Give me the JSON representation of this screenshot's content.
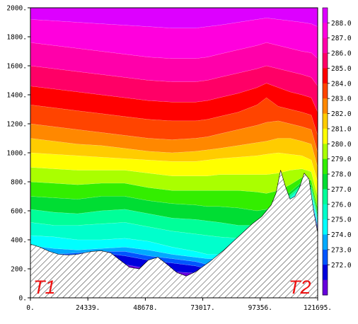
{
  "chart_data": {
    "type": "heatmap",
    "title": "",
    "xlabel": "",
    "ylabel": "",
    "x_ticks": [
      "0.",
      "24339.",
      "48678.",
      "73017.",
      "97356.",
      "121695."
    ],
    "x_tick_values": [
      0,
      24339,
      48678,
      73017,
      97356,
      121695
    ],
    "y_ticks": [
      "0.",
      "200.",
      "400.",
      "600.",
      "800.",
      "1000.",
      "1200.",
      "1400.",
      "1600.",
      "1800.",
      "2000."
    ],
    "y_tick_values": [
      0,
      200,
      400,
      600,
      800,
      1000,
      1200,
      1400,
      1600,
      1800,
      2000
    ],
    "xlim": [
      0,
      121695
    ],
    "ylim": [
      0,
      2000
    ],
    "colorbar": {
      "labels": [
        "288.0",
        "287.0",
        "286.0",
        "285.0",
        "284.0",
        "283.0",
        "282.0",
        "281.0",
        "280.0",
        "279.0",
        "278.0",
        "277.0",
        "276.0",
        "275.0",
        "274.0",
        "273.0",
        "272.0"
      ],
      "colors": [
        "#dd00ff",
        "#ff00dd",
        "#ff00aa",
        "#ff0066",
        "#ff0000",
        "#ff4400",
        "#ff8800",
        "#ffcc00",
        "#ffff00",
        "#aaff00",
        "#33ee00",
        "#00dd33",
        "#00ff99",
        "#00ffcc",
        "#00ffff",
        "#00aaff",
        "#0055ff",
        "#0000dd",
        "#6600dd"
      ]
    },
    "levels": [
      271,
      272,
      273,
      274,
      275,
      276,
      277,
      278,
      279,
      280,
      281,
      282,
      283,
      284,
      285,
      286,
      287,
      288
    ],
    "level_heights_m": {
      "x": [
        0,
        10000,
        20000,
        30000,
        40000,
        50000,
        60000,
        70000,
        75000,
        80000,
        88000,
        96000,
        100000,
        105000,
        110000,
        115000,
        119000,
        121695
      ],
      "rows": [
        [
          210,
          240,
          250,
          260,
          230,
          200,
          180,
          170,
          170,
          230,
          330,
          420,
          480,
          560,
          640,
          720,
          640,
          470
        ],
        [
          260,
          290,
          300,
          310,
          290,
          260,
          240,
          220,
          200,
          240,
          340,
          430,
          490,
          570,
          650,
          730,
          660,
          480
        ],
        [
          300,
          300,
          310,
          320,
          320,
          290,
          270,
          250,
          230,
          250,
          350,
          440,
          500,
          580,
          660,
          740,
          680,
          490
        ],
        [
          360,
          340,
          330,
          340,
          350,
          330,
          300,
          280,
          270,
          270,
          360,
          450,
          510,
          590,
          670,
          750,
          700,
          500
        ],
        [
          430,
          420,
          400,
          400,
          410,
          390,
          350,
          320,
          300,
          300,
          380,
          460,
          520,
          600,
          680,
          760,
          720,
          520
        ],
        [
          520,
          500,
          500,
          510,
          520,
          490,
          460,
          440,
          430,
          420,
          410,
          470,
          530,
          610,
          690,
          770,
          740,
          540
        ],
        [
          610,
          590,
          580,
          600,
          610,
          580,
          550,
          540,
          530,
          520,
          500,
          500,
          550,
          630,
          710,
          780,
          760,
          560
        ],
        [
          700,
          690,
          680,
          700,
          700,
          670,
          650,
          640,
          630,
          630,
          620,
          600,
          610,
          660,
          730,
          800,
          780,
          580
        ],
        [
          800,
          790,
          780,
          790,
          790,
          760,
          740,
          740,
          740,
          740,
          740,
          730,
          720,
          740,
          780,
          830,
          810,
          620
        ],
        [
          900,
          890,
          880,
          880,
          880,
          860,
          840,
          840,
          840,
          850,
          850,
          850,
          850,
          860,
          880,
          890,
          870,
          700
        ],
        [
          1000,
          990,
          980,
          970,
          960,
          950,
          940,
          940,
          950,
          960,
          970,
          980,
          990,
          1000,
          990,
          980,
          950,
          800
        ],
        [
          1100,
          1080,
          1060,
          1050,
          1030,
          1010,
          1000,
          1010,
          1020,
          1030,
          1050,
          1070,
          1080,
          1100,
          1100,
          1080,
          1060,
          900
        ],
        [
          1200,
          1180,
          1160,
          1140,
          1120,
          1100,
          1090,
          1100,
          1110,
          1130,
          1160,
          1190,
          1210,
          1220,
          1200,
          1180,
          1160,
          1000
        ],
        [
          1330,
          1310,
          1290,
          1270,
          1250,
          1230,
          1220,
          1220,
          1230,
          1250,
          1280,
          1330,
          1380,
          1320,
          1300,
          1280,
          1260,
          1120
        ],
        [
          1460,
          1440,
          1420,
          1400,
          1380,
          1360,
          1350,
          1350,
          1360,
          1380,
          1410,
          1450,
          1480,
          1450,
          1420,
          1400,
          1380,
          1280
        ],
        [
          1600,
          1580,
          1560,
          1540,
          1520,
          1500,
          1490,
          1490,
          1500,
          1520,
          1550,
          1580,
          1600,
          1580,
          1560,
          1540,
          1520,
          1460
        ],
        [
          1760,
          1740,
          1720,
          1700,
          1680,
          1660,
          1650,
          1650,
          1660,
          1680,
          1710,
          1740,
          1760,
          1740,
          1720,
          1700,
          1690,
          1650
        ],
        [
          1920,
          1910,
          1900,
          1890,
          1880,
          1870,
          1860,
          1860,
          1870,
          1880,
          1900,
          1920,
          1930,
          1920,
          1910,
          1900,
          1890,
          1870
        ]
      ]
    },
    "terrain": {
      "x": [
        0,
        4000,
        8000,
        12000,
        16000,
        20000,
        26000,
        30000,
        34000,
        38000,
        42000,
        46000,
        50000,
        54000,
        58000,
        62000,
        66000,
        70000,
        76000,
        82000,
        88000,
        94000,
        98000,
        102000,
        104000,
        106000,
        108000,
        110000,
        112000,
        114000,
        116000,
        118000,
        120000,
        121695
      ],
      "height": [
        370,
        350,
        320,
        300,
        295,
        300,
        320,
        325,
        310,
        260,
        210,
        200,
        260,
        280,
        230,
        175,
        150,
        180,
        250,
        330,
        420,
        510,
        560,
        640,
        720,
        880,
        770,
        680,
        700,
        760,
        860,
        820,
        600,
        450
      ]
    },
    "annotations": [
      "T1",
      "T2"
    ]
  }
}
